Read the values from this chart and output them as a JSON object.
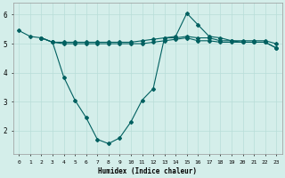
{
  "xlabel": "Humidex (Indice chaleur)",
  "bg_color": "#d4eeea",
  "grid_color": "#b8ddd8",
  "line_color": "#006060",
  "ylim": [
    1.2,
    6.4
  ],
  "xlim": [
    -0.5,
    23.5
  ],
  "yticks": [
    2,
    3,
    4,
    5,
    6
  ],
  "xticks": [
    0,
    1,
    2,
    3,
    4,
    5,
    6,
    7,
    8,
    9,
    10,
    11,
    12,
    13,
    14,
    15,
    16,
    17,
    18,
    19,
    20,
    21,
    22,
    23
  ],
  "line1_x": [
    0,
    1,
    2,
    3,
    4,
    5,
    6,
    7,
    8,
    9,
    10,
    11,
    12,
    13,
    14,
    15,
    16,
    17,
    18,
    19,
    20,
    21,
    22,
    23
  ],
  "line1_y": [
    5.45,
    5.25,
    5.2,
    5.05,
    5.05,
    5.05,
    5.05,
    5.05,
    5.05,
    5.05,
    5.05,
    5.1,
    5.15,
    5.2,
    5.2,
    5.25,
    5.2,
    5.2,
    5.1,
    5.1,
    5.1,
    5.1,
    5.1,
    5.0
  ],
  "line2_x": [
    2,
    3,
    4,
    5,
    6,
    7,
    8,
    9,
    10,
    11,
    12,
    13,
    14,
    15,
    16,
    17,
    18,
    19,
    20,
    21,
    22,
    23
  ],
  "line2_y": [
    5.2,
    5.05,
    5.0,
    5.0,
    5.0,
    5.0,
    5.0,
    5.0,
    5.0,
    5.0,
    5.05,
    5.1,
    5.15,
    5.2,
    5.1,
    5.1,
    5.05,
    5.05,
    5.05,
    5.05,
    5.05,
    4.85
  ],
  "line3_x": [
    2,
    3,
    4,
    5,
    6,
    7,
    8,
    9,
    10,
    11,
    12,
    13,
    14,
    15,
    16,
    17,
    18,
    19,
    20,
    21,
    22,
    23
  ],
  "line3_y": [
    5.2,
    5.05,
    3.85,
    3.05,
    2.45,
    1.7,
    1.55,
    1.75,
    2.3,
    3.05,
    3.45,
    5.2,
    5.25,
    6.05,
    5.65,
    5.25,
    5.2,
    5.1,
    5.05,
    5.05,
    5.05,
    4.85
  ],
  "marker": "D",
  "marker_size": 2,
  "lw": 0.8
}
